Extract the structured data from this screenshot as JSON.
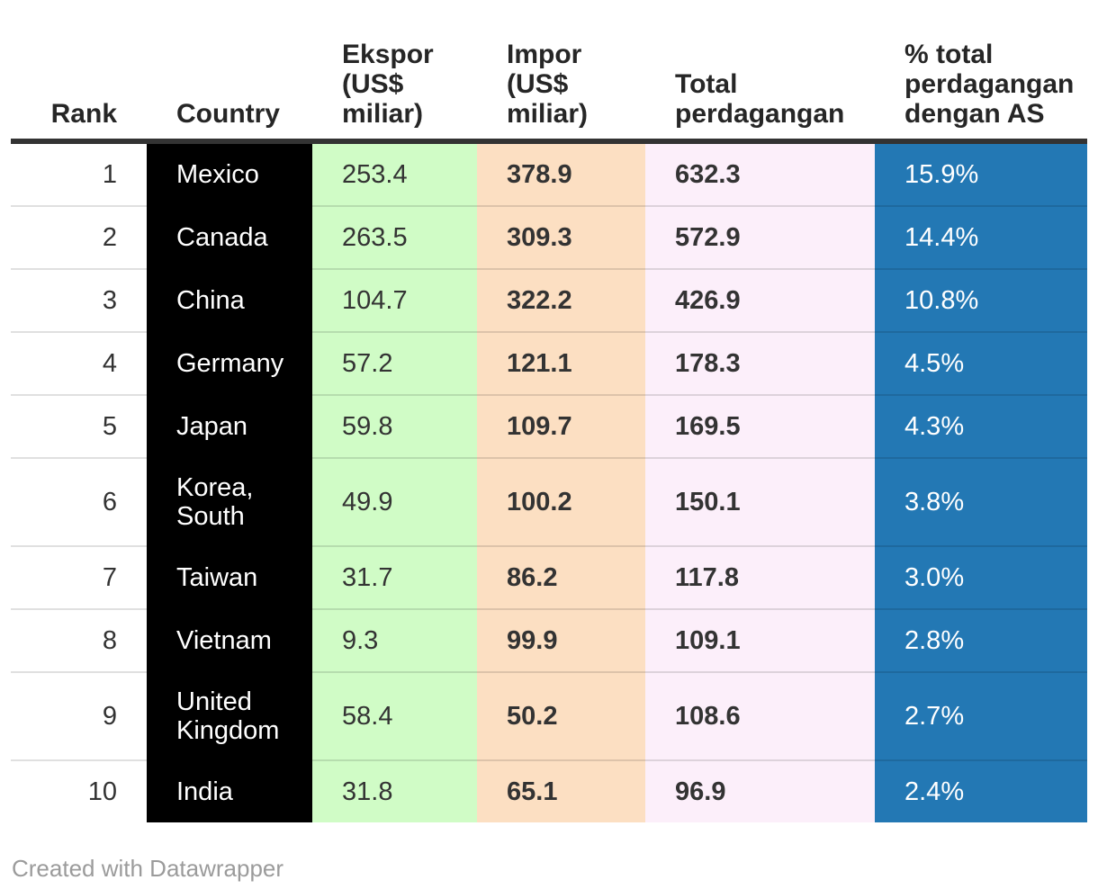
{
  "chart_data": {
    "type": "table",
    "title": "",
    "columns": [
      {
        "key": "rank",
        "label": "Rank"
      },
      {
        "key": "country",
        "label": "Country"
      },
      {
        "key": "ekspor",
        "label": "Ekspor\n(US$\nmiliar)"
      },
      {
        "key": "impor",
        "label": "Impor\n(US$\nmiliar)"
      },
      {
        "key": "total",
        "label": "Total\nperdagangan"
      },
      {
        "key": "pct",
        "label": "% total\nperdagangan\ndengan AS"
      }
    ],
    "rows": [
      {
        "rank": "1",
        "country": "Mexico",
        "ekspor": "253.4",
        "impor": "378.9",
        "total": "632.3",
        "pct": "15.9%"
      },
      {
        "rank": "2",
        "country": "Canada",
        "ekspor": "263.5",
        "impor": "309.3",
        "total": "572.9",
        "pct": "14.4%"
      },
      {
        "rank": "3",
        "country": "China",
        "ekspor": "104.7",
        "impor": "322.2",
        "total": "426.9",
        "pct": "10.8%"
      },
      {
        "rank": "4",
        "country": "Germany",
        "ekspor": "57.2",
        "impor": "121.1",
        "total": "178.3",
        "pct": "4.5%"
      },
      {
        "rank": "5",
        "country": "Japan",
        "ekspor": "59.8",
        "impor": "109.7",
        "total": "169.5",
        "pct": "4.3%"
      },
      {
        "rank": "6",
        "country": "Korea, South",
        "ekspor": "49.9",
        "impor": "100.2",
        "total": "150.1",
        "pct": "3.8%"
      },
      {
        "rank": "7",
        "country": "Taiwan",
        "ekspor": "31.7",
        "impor": "86.2",
        "total": "117.8",
        "pct": "3.0%"
      },
      {
        "rank": "8",
        "country": "Vietnam",
        "ekspor": "9.3",
        "impor": "99.9",
        "total": "109.1",
        "pct": "2.8%"
      },
      {
        "rank": "9",
        "country": "United Kingdom",
        "ekspor": "58.4",
        "impor": "50.2",
        "total": "108.6",
        "pct": "2.7%"
      },
      {
        "rank": "10",
        "country": "India",
        "ekspor": "31.8",
        "impor": "65.1",
        "total": "96.9",
        "pct": "2.4%"
      }
    ]
  },
  "colors": {
    "country_column_bg": "#000000",
    "ekspor_column_bg": "#d0fcc6",
    "impor_column_bg": "#fcdfc2",
    "total_column_bg": "#fceffa",
    "pct_column_bg": "#2378b4",
    "header_rule": "#333333",
    "body_text": "#333333",
    "inverse_text": "#ffffff",
    "footer_text": "#9b9b9b"
  },
  "footer": {
    "credit": "Created with Datawrapper"
  }
}
